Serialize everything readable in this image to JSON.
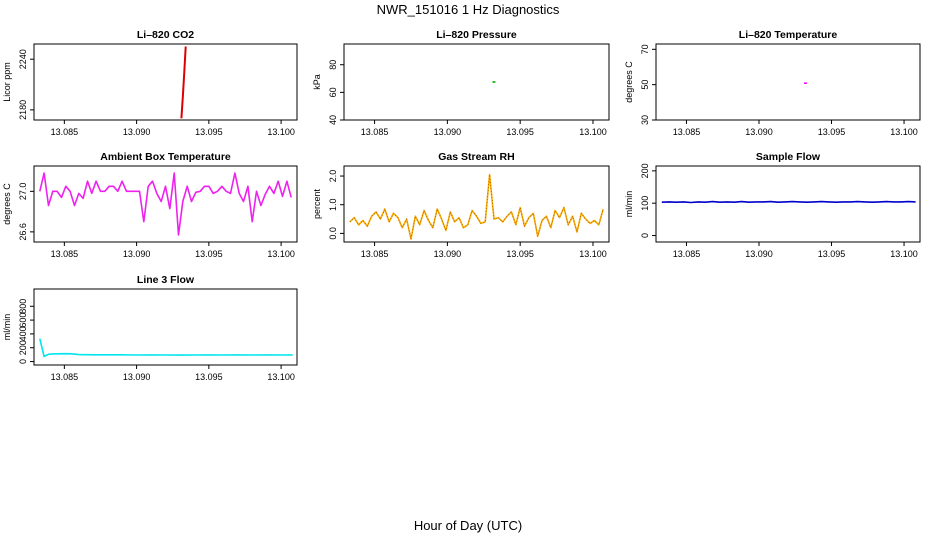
{
  "figure": {
    "title": "NWR_151016  1 Hz Diagnostics",
    "xlabel": "Hour of Day (UTC)"
  },
  "chart_data": [
    {
      "type": "line",
      "title": "Li–820 CO2",
      "ylabel": "Licor ppm",
      "color": "#dd0000",
      "xlim": [
        13.0829,
        13.1011
      ],
      "xticks": [
        13.085,
        13.09,
        13.095,
        13.1
      ],
      "xticklabels": [
        "13.085",
        "13.090",
        "13.095",
        "13.100"
      ],
      "ylim": [
        2168,
        2258
      ],
      "yticks": [
        2180,
        2240
      ],
      "yticklabels": [
        "2180",
        "2240"
      ],
      "x": [
        13.0931,
        13.0932,
        13.0933,
        13.0934
      ],
      "y": [
        2170,
        2195,
        2225,
        2255
      ]
    },
    {
      "type": "line",
      "title": "Li–820 Pressure",
      "ylabel": "kPa",
      "color": "#00aa00",
      "xlim": [
        13.0829,
        13.1011
      ],
      "xticks": [
        13.085,
        13.09,
        13.095,
        13.1
      ],
      "xticklabels": [
        "13.085",
        "13.090",
        "13.095",
        "13.100"
      ],
      "ylim": [
        40,
        95
      ],
      "yticks": [
        40,
        60,
        80
      ],
      "yticklabels": [
        "40",
        "60",
        "80"
      ],
      "x": [
        13.0931,
        13.0933
      ],
      "y": [
        67.5,
        67.5
      ]
    },
    {
      "type": "line",
      "title": "Li–820 Temperature",
      "ylabel": "degrees C",
      "color": "#ff00ff",
      "xlim": [
        13.0829,
        13.1011
      ],
      "xticks": [
        13.085,
        13.09,
        13.095,
        13.1
      ],
      "xticklabels": [
        "13.085",
        "13.090",
        "13.095",
        "13.100"
      ],
      "ylim": [
        30,
        73
      ],
      "yticks": [
        30,
        50,
        70
      ],
      "yticklabels": [
        "30",
        "50",
        "70"
      ],
      "x": [
        13.0931,
        13.0933
      ],
      "y": [
        50.8,
        50.8
      ]
    },
    {
      "type": "line",
      "title": "Ambient Box Temperature",
      "ylabel": "degrees C",
      "color": "#ee22ee",
      "xlim": [
        13.0829,
        13.1011
      ],
      "xticks": [
        13.085,
        13.09,
        13.095,
        13.1
      ],
      "xticklabels": [
        "13.085",
        "13.090",
        "13.095",
        "13.100"
      ],
      "ylim": [
        26.5,
        27.25
      ],
      "yticks": [
        26.6,
        27.0
      ],
      "yticklabels": [
        "26.6",
        "27.0"
      ],
      "x": [
        13.0833,
        13.0836,
        13.0839,
        13.0842,
        13.0845,
        13.0848,
        13.0851,
        13.0854,
        13.0857,
        13.086,
        13.0863,
        13.0866,
        13.0869,
        13.0872,
        13.0875,
        13.0878,
        13.0881,
        13.0884,
        13.0887,
        13.089,
        13.0893,
        13.0896,
        13.0899,
        13.0902,
        13.0905,
        13.0908,
        13.0911,
        13.0914,
        13.0917,
        13.092,
        13.0923,
        13.0926,
        13.0929,
        13.0932,
        13.0935,
        13.0938,
        13.0941,
        13.0944,
        13.0947,
        13.095,
        13.0953,
        13.0956,
        13.0959,
        13.0962,
        13.0965,
        13.0968,
        13.0971,
        13.0974,
        13.0977,
        13.098,
        13.0983,
        13.0986,
        13.0989,
        13.0992,
        13.0995,
        13.0998,
        13.1001,
        13.1004,
        13.1007
      ],
      "y": [
        27.0,
        27.18,
        26.86,
        27.0,
        27.0,
        26.94,
        27.05,
        27.0,
        26.86,
        26.98,
        26.93,
        27.1,
        26.98,
        27.1,
        27.0,
        27.0,
        27.05,
        27.05,
        27.0,
        27.1,
        27.0,
        27.0,
        27.0,
        27.0,
        26.7,
        27.05,
        27.1,
        26.98,
        26.9,
        27.05,
        26.83,
        27.18,
        26.57,
        26.9,
        27.05,
        26.9,
        26.99,
        27.0,
        27.05,
        27.05,
        26.98,
        27.0,
        27.05,
        27.0,
        26.98,
        27.18,
        26.98,
        26.9,
        27.05,
        26.7,
        27.0,
        26.86,
        26.97,
        27.05,
        26.98,
        27.1,
        26.95,
        27.1,
        26.94
      ]
    },
    {
      "type": "line",
      "title": "Gas Stream RH",
      "ylabel": "percent",
      "color": "#ffaa00",
      "xlim": [
        13.0829,
        13.1011
      ],
      "xticks": [
        13.085,
        13.09,
        13.095,
        13.1
      ],
      "xticklabels": [
        "13.085",
        "13.090",
        "13.095",
        "13.100"
      ],
      "ylim": [
        -0.3,
        2.35
      ],
      "yticks": [
        0.0,
        1.0,
        2.0
      ],
      "yticklabels": [
        "0.0",
        "1.0",
        "2.0"
      ],
      "x": [
        13.0833,
        13.0836,
        13.0839,
        13.0842,
        13.0845,
        13.0848,
        13.0851,
        13.0854,
        13.0857,
        13.086,
        13.0863,
        13.0866,
        13.0869,
        13.0872,
        13.0875,
        13.0878,
        13.0881,
        13.0884,
        13.0887,
        13.089,
        13.0893,
        13.0896,
        13.0899,
        13.0902,
        13.0905,
        13.0908,
        13.0911,
        13.0914,
        13.0917,
        13.092,
        13.0923,
        13.0926,
        13.0929,
        13.0932,
        13.0935,
        13.0938,
        13.0941,
        13.0944,
        13.0947,
        13.095,
        13.0953,
        13.0956,
        13.0959,
        13.0962,
        13.0965,
        13.0968,
        13.0971,
        13.0974,
        13.0977,
        13.098,
        13.0983,
        13.0986,
        13.0989,
        13.0992,
        13.0995,
        13.0998,
        13.1001,
        13.1004,
        13.1007
      ],
      "y": [
        0.4,
        0.55,
        0.3,
        0.45,
        0.25,
        0.6,
        0.75,
        0.5,
        0.85,
        0.4,
        0.7,
        0.55,
        0.2,
        0.5,
        -0.2,
        0.6,
        0.3,
        0.8,
        0.45,
        0.2,
        0.85,
        0.5,
        0.1,
        0.75,
        0.4,
        0.55,
        0.2,
        0.3,
        0.8,
        0.6,
        0.35,
        0.4,
        2.05,
        0.5,
        0.55,
        0.4,
        0.6,
        0.75,
        0.3,
        0.9,
        0.25,
        0.55,
        0.7,
        -0.1,
        0.45,
        0.6,
        0.2,
        0.8,
        0.55,
        0.9,
        0.3,
        0.6,
        0.05,
        0.7,
        0.5,
        0.35,
        0.45,
        0.3,
        0.85
      ]
    },
    {
      "type": "line",
      "title": "Sample Flow",
      "ylabel": "ml/min",
      "color": "#0000cc",
      "xlim": [
        13.0829,
        13.1011
      ],
      "xticks": [
        13.085,
        13.09,
        13.095,
        13.1
      ],
      "xticklabels": [
        "13.085",
        "13.090",
        "13.095",
        "13.100"
      ],
      "ylim": [
        -20,
        215
      ],
      "yticks": [
        0,
        100,
        200
      ],
      "yticklabels": [
        "0",
        "100",
        "200"
      ],
      "x": [
        13.0833,
        13.0838,
        13.0843,
        13.0848,
        13.0853,
        13.0858,
        13.0863,
        13.0868,
        13.0873,
        13.0878,
        13.0883,
        13.0888,
        13.0893,
        13.0898,
        13.0903,
        13.0908,
        13.0913,
        13.0918,
        13.0923,
        13.0928,
        13.0933,
        13.0938,
        13.0943,
        13.0948,
        13.0953,
        13.0958,
        13.0963,
        13.0968,
        13.0973,
        13.0978,
        13.0983,
        13.0988,
        13.0993,
        13.0998,
        13.1003,
        13.1008
      ],
      "y": [
        103,
        104,
        103,
        104,
        102,
        104,
        103,
        105,
        103,
        104,
        103,
        105,
        103,
        104,
        104,
        105,
        103,
        104,
        105,
        104,
        103,
        104,
        105,
        104,
        103,
        104,
        104,
        105,
        104,
        103,
        104,
        105,
        104,
        104,
        105,
        104
      ]
    },
    {
      "type": "line",
      "title": "Line 3 Flow",
      "ylabel": "ml/min",
      "color": "#00e5ee",
      "xlim": [
        13.0829,
        13.1011
      ],
      "xticks": [
        13.085,
        13.09,
        13.095,
        13.1
      ],
      "xticklabels": [
        "13.085",
        "13.090",
        "13.095",
        "13.100"
      ],
      "ylim": [
        -50,
        1050
      ],
      "yticks": [
        0,
        200,
        400,
        600,
        800
      ],
      "yticklabels": [
        "0",
        "200",
        "400",
        "600",
        "800"
      ],
      "x": [
        13.0833,
        13.0836,
        13.0839,
        13.0842,
        13.0845,
        13.085,
        13.0855,
        13.086,
        13.087,
        13.088,
        13.089,
        13.09,
        13.091,
        13.092,
        13.093,
        13.094,
        13.095,
        13.096,
        13.097,
        13.098,
        13.099,
        13.1,
        13.1008
      ],
      "y": [
        330,
        75,
        105,
        110,
        112,
        113,
        112,
        100,
        98,
        97,
        97,
        95,
        96,
        95,
        94,
        95,
        96,
        95,
        96,
        95,
        96,
        95,
        96
      ]
    }
  ]
}
